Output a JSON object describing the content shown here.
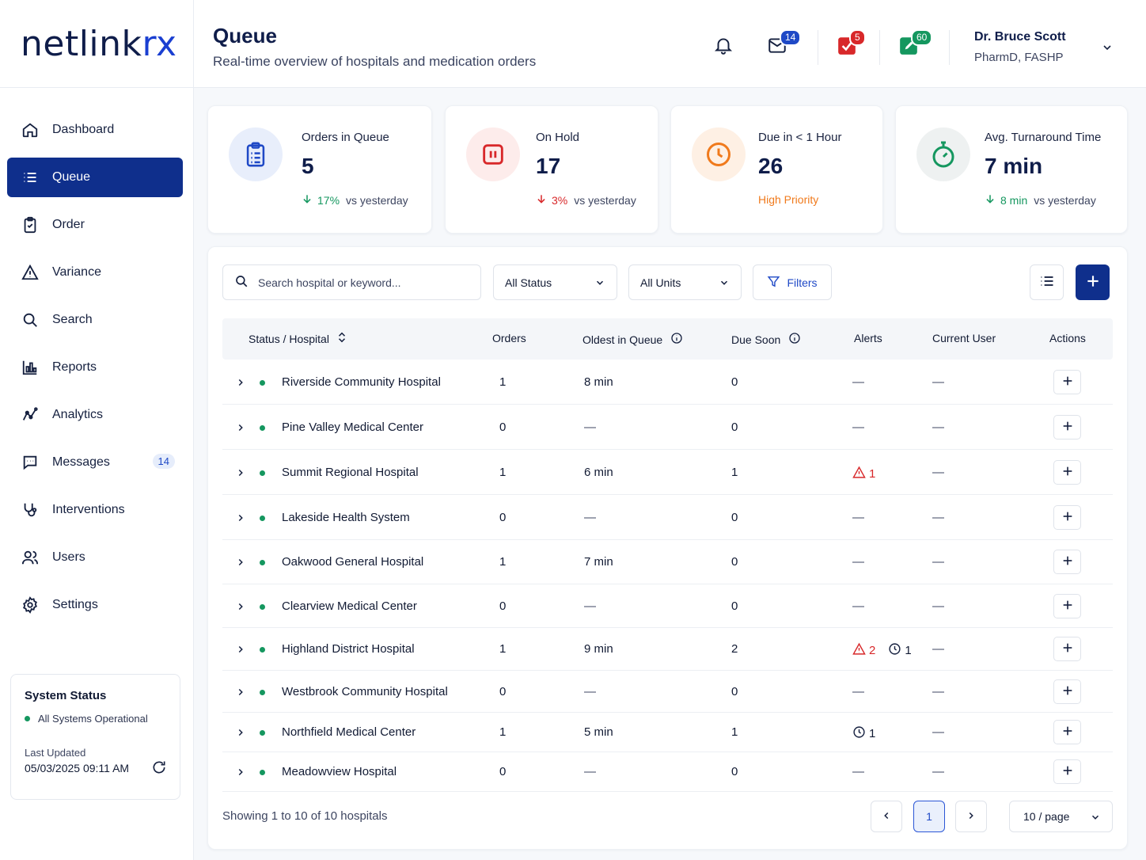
{
  "brand": {
    "logo_main": "netlink",
    "logo_accent": "rx"
  },
  "nav": [
    {
      "label": "Dashboard",
      "icon": "home-icon"
    },
    {
      "label": "Queue",
      "icon": "list-icon",
      "active": true
    },
    {
      "label": "Order",
      "icon": "clipboard-icon"
    },
    {
      "label": "Variance",
      "icon": "warning-icon"
    },
    {
      "label": "Search",
      "icon": "search-icon"
    },
    {
      "label": "Reports",
      "icon": "bar-chart-icon"
    },
    {
      "label": "Analytics",
      "icon": "analytics-icon"
    },
    {
      "label": "Messages",
      "icon": "message-icon",
      "badge": "14"
    },
    {
      "label": "Interventions",
      "icon": "stethoscope-icon"
    },
    {
      "label": "Users",
      "icon": "users-icon"
    },
    {
      "label": "Settings",
      "icon": "gear-icon"
    }
  ],
  "system_status": {
    "title": "System Status",
    "status": "All Systems Operational",
    "last_updated_label": "Last Updated",
    "last_updated": "05/03/2025 09:11 AM"
  },
  "header": {
    "title": "Queue",
    "subtitle": "Real-time overview of hospitals and medication orders",
    "mail_badge": "14",
    "tasks_badge": "5",
    "notes_badge": "60",
    "user_name": "Dr. Bruce Scott",
    "user_role": "PharmD, FASHP"
  },
  "stats": {
    "queue": {
      "label": "Orders in Queue",
      "value": "5",
      "change": "17%",
      "suffix": "vs yesterday"
    },
    "hold": {
      "label": "On Hold",
      "value": "17",
      "change": "3%",
      "suffix": "vs yesterday"
    },
    "due": {
      "label": "Due in < 1 Hour",
      "value": "26",
      "note": "High Priority"
    },
    "tat": {
      "label": "Avg. Turnaround Time",
      "value": "7 min",
      "change": "8 min",
      "suffix": "vs yesterday"
    }
  },
  "toolbar": {
    "search_placeholder": "Search hospital or keyword...",
    "status_select": "All Status",
    "units_select": "All Units",
    "filters_label": "Filters"
  },
  "table": {
    "headers": {
      "hospital": "Status / Hospital",
      "orders": "Orders",
      "oldest": "Oldest in Queue",
      "due": "Due Soon",
      "alerts": "Alerts",
      "user": "Current User",
      "actions": "Actions"
    },
    "rows": [
      {
        "name": "Riverside Community Hospital",
        "orders": "1",
        "oldest": "8 min",
        "due": "0",
        "warn": "",
        "clock": "",
        "user": "—"
      },
      {
        "name": "Pine Valley Medical Center",
        "orders": "0",
        "oldest": "—",
        "due": "0",
        "warn": "",
        "clock": "",
        "user": "—"
      },
      {
        "name": "Summit Regional Hospital",
        "orders": "1",
        "oldest": "6 min",
        "due": "1",
        "warn": "1",
        "clock": "",
        "user": "—"
      },
      {
        "name": "Lakeside Health System",
        "orders": "0",
        "oldest": "—",
        "due": "0",
        "warn": "",
        "clock": "",
        "user": "—"
      },
      {
        "name": "Oakwood General Hospital",
        "orders": "1",
        "oldest": "7 min",
        "due": "0",
        "warn": "",
        "clock": "",
        "user": "—"
      },
      {
        "name": "Clearview Medical Center",
        "orders": "0",
        "oldest": "—",
        "due": "0",
        "warn": "",
        "clock": "",
        "user": "—"
      },
      {
        "name": "Highland District Hospital",
        "orders": "1",
        "oldest": "9 min",
        "due": "2",
        "warn": "2",
        "clock": "1",
        "user": "—"
      },
      {
        "name": "Westbrook Community Hospital",
        "orders": "0",
        "oldest": "—",
        "due": "0",
        "warn": "",
        "clock": "",
        "user": "—"
      },
      {
        "name": "Northfield Medical Center",
        "orders": "1",
        "oldest": "5 min",
        "due": "1",
        "warn": "",
        "clock": "1",
        "user": "—"
      },
      {
        "name": "Meadowview Hospital",
        "orders": "0",
        "oldest": "—",
        "due": "0",
        "warn": "",
        "clock": "",
        "user": "—"
      }
    ],
    "empty_alert": "—"
  },
  "pagination": {
    "summary": "Showing 1 to 10 of 10 hospitals",
    "current_page": "1",
    "per_page": "10 / page"
  },
  "colors": {
    "primary": "#0f2f8c",
    "accent": "#1f49c6",
    "green": "#15975f",
    "red": "#d8282a",
    "orange": "#f07a1c"
  }
}
